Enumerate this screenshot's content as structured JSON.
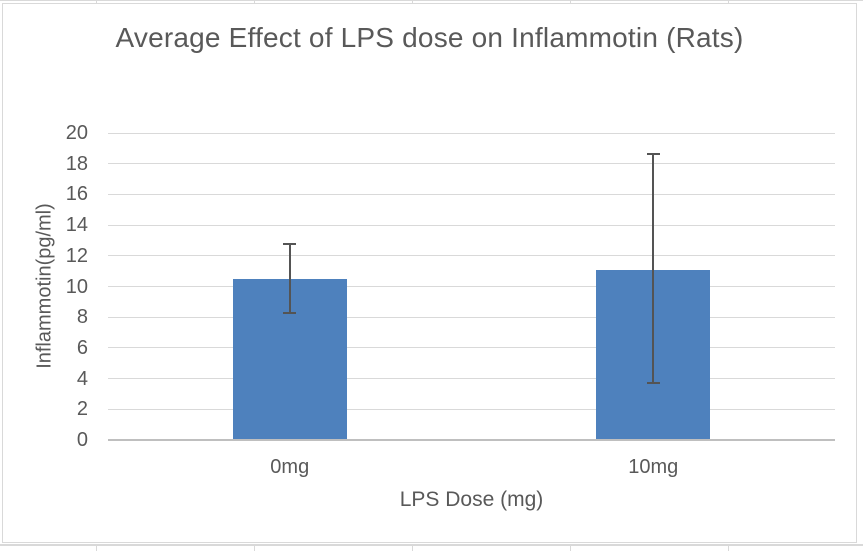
{
  "chart_data": {
    "type": "bar",
    "title": "Average Effect of LPS dose on Inflammotin (Rats)",
    "xlabel": "LPS Dose (mg)",
    "ylabel": "Inflammotin(pg/ml)",
    "categories": [
      "0mg",
      "10mg"
    ],
    "values": [
      10.5,
      11.1
    ],
    "error_bars": [
      {
        "low": 8.25,
        "high": 12.8
      },
      {
        "low": 3.7,
        "high": 18.6
      }
    ],
    "ylim": [
      0,
      20
    ],
    "ytick_step": 2,
    "ytick_labels": [
      "0",
      "2",
      "4",
      "6",
      "8",
      "10",
      "12",
      "14",
      "16",
      "18",
      "20"
    ],
    "grid": true,
    "legend": false,
    "colors": {
      "bar": "#4E81BD",
      "error_bar": "#545454",
      "gridline": "#D9D9D9",
      "axis_line": "#BFBFBF",
      "text": "#595959",
      "chart_border": "#D9D9D9"
    }
  },
  "spreadsheet_artifacts": {
    "column_line_x": [
      96,
      254,
      412,
      570,
      728
    ]
  }
}
